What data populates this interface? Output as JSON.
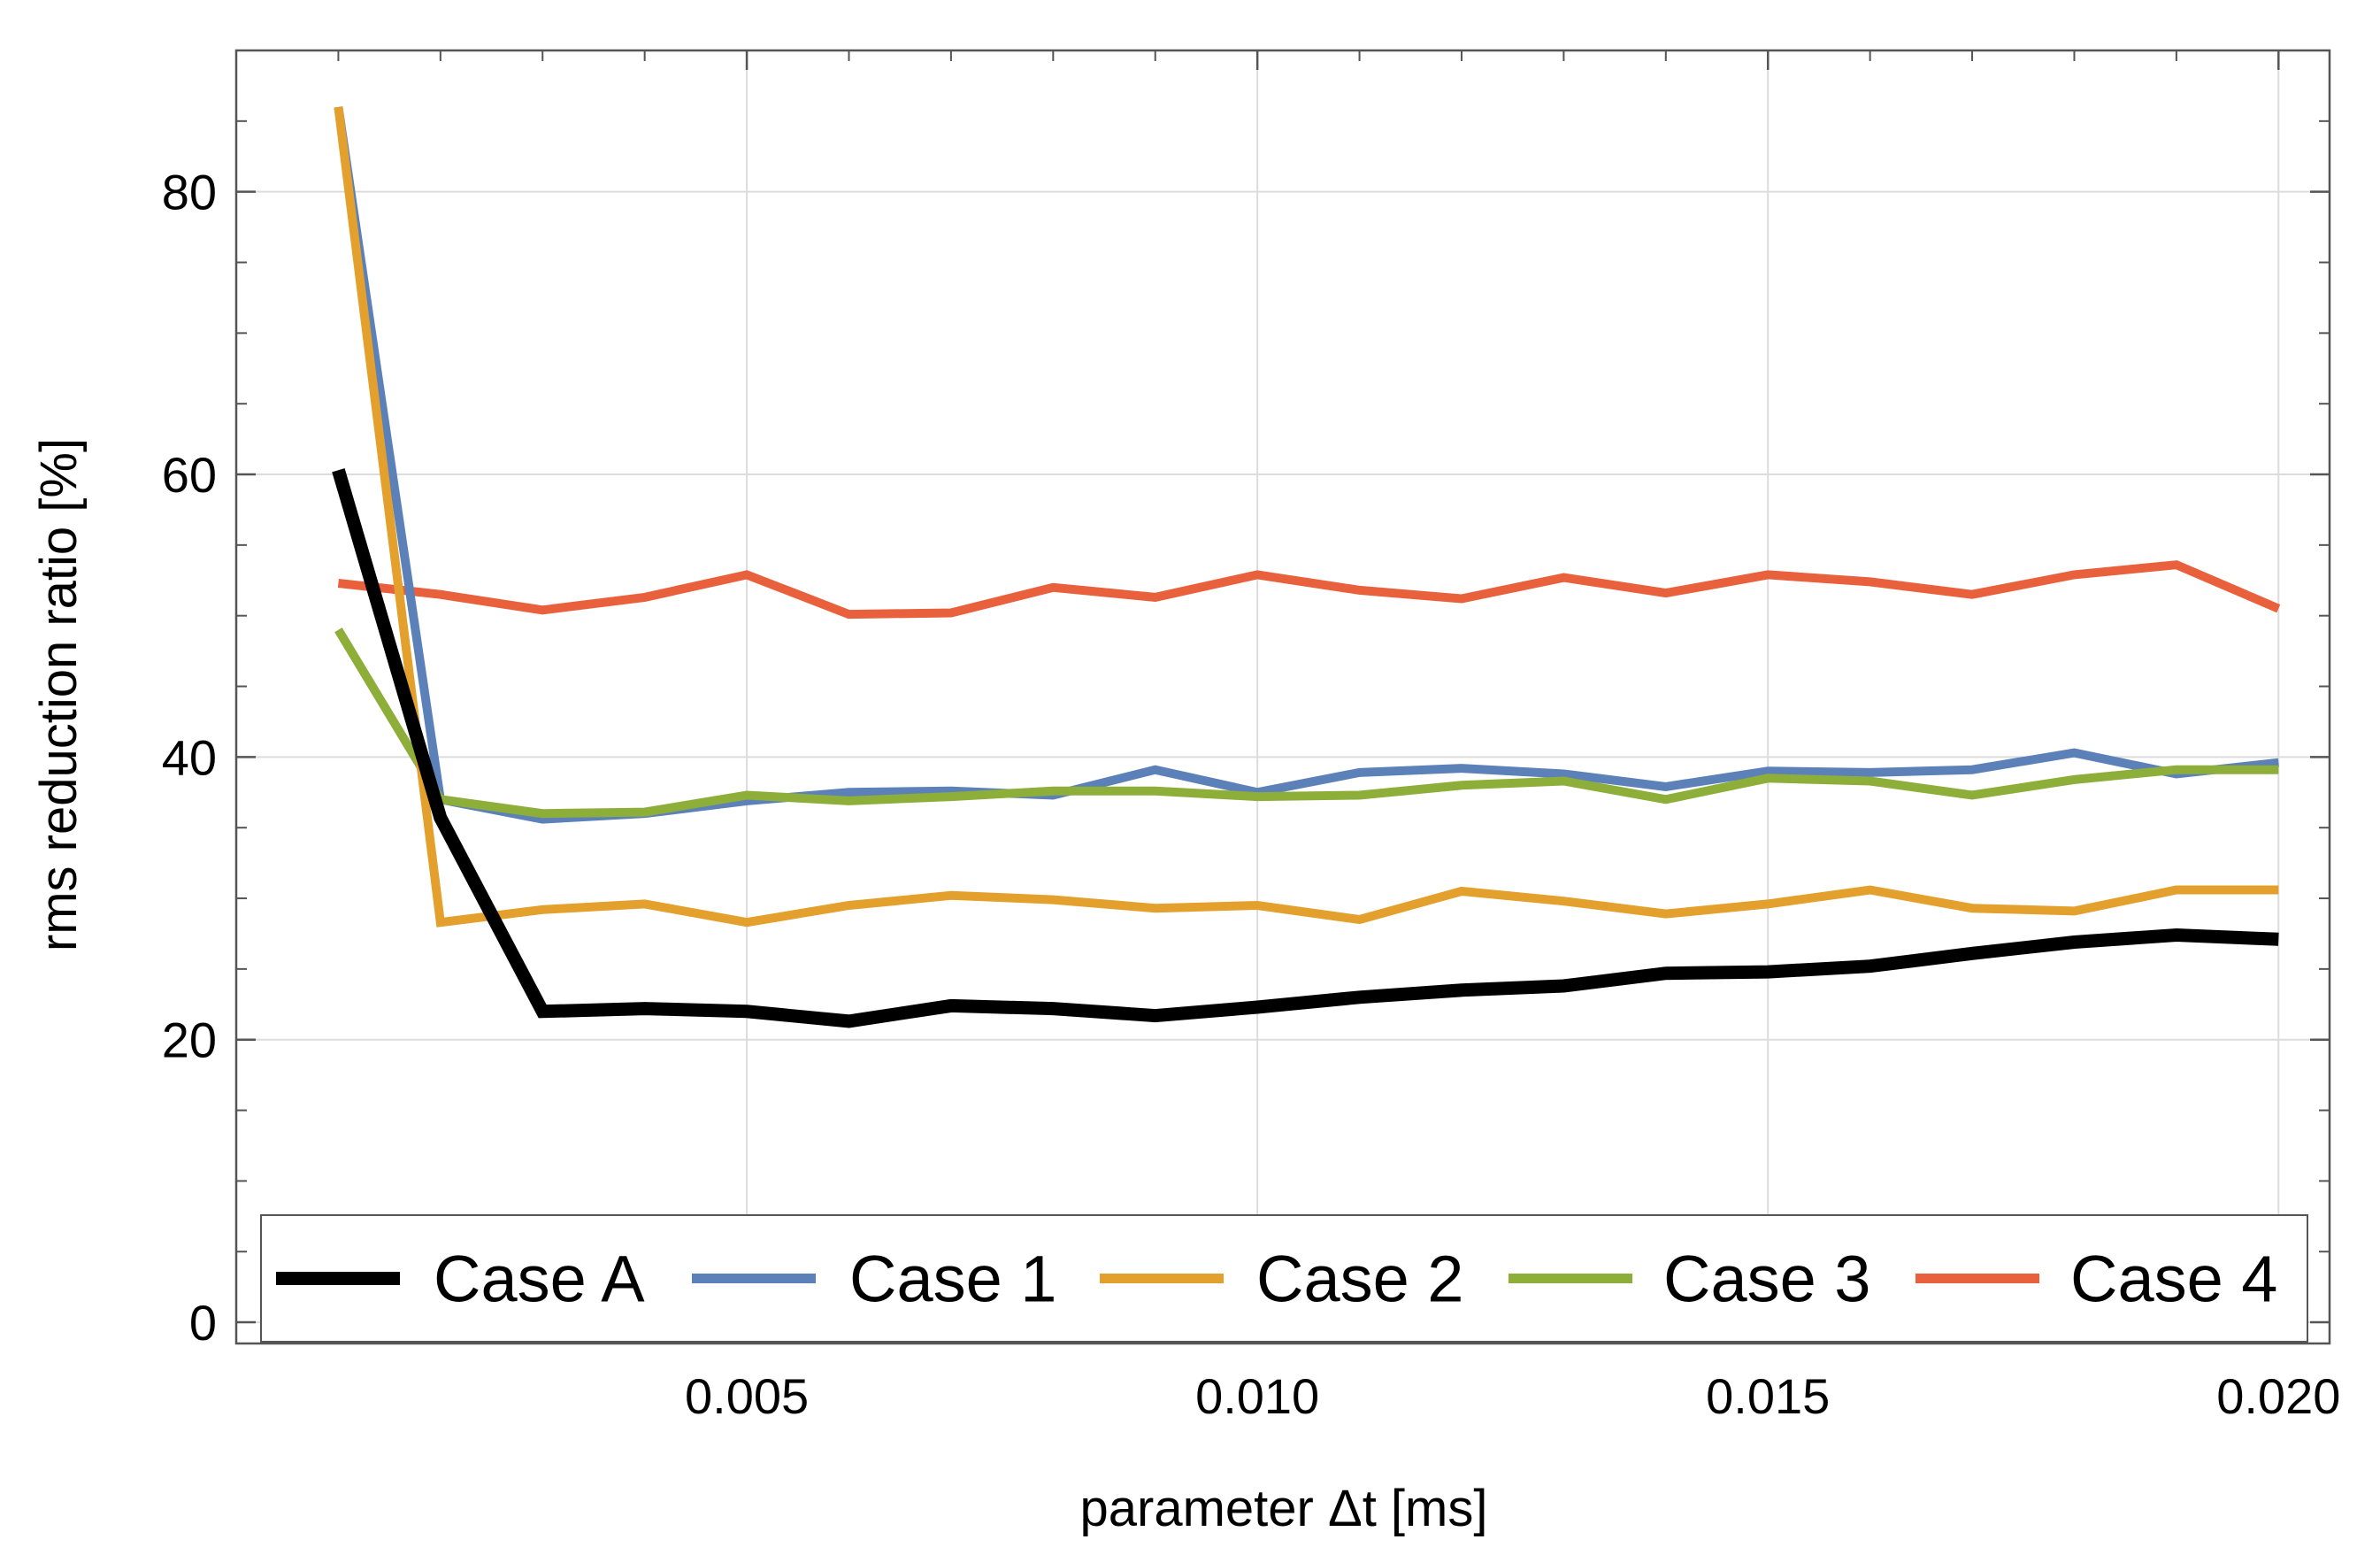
{
  "chart_data": {
    "type": "line",
    "title": "",
    "xlabel": "parameter Δt [ms]",
    "ylabel": "rms reduction ratio [%]",
    "xlim": [
      0,
      0.0205
    ],
    "ylim": [
      -1.5,
      90
    ],
    "x_major_ticks": [
      0.005,
      0.01,
      0.015,
      0.02
    ],
    "x_tick_labels": [
      "0.005",
      "0.010",
      "0.015",
      "0.020"
    ],
    "x_minor_ticks": [
      0.001,
      0.002,
      0.003,
      0.004,
      0.006,
      0.007,
      0.008,
      0.009,
      0.011,
      0.012,
      0.013,
      0.014,
      0.016,
      0.017,
      0.018,
      0.019
    ],
    "y_major_ticks": [
      0,
      20,
      40,
      60,
      80
    ],
    "y_tick_labels": [
      "0",
      "20",
      "40",
      "60",
      "80"
    ],
    "y_minor_ticks": [
      5,
      10,
      15,
      25,
      30,
      35,
      45,
      50,
      55,
      65,
      70,
      75,
      85
    ],
    "grid": true,
    "legend_position": "bottom",
    "x": [
      0.001,
      0.002,
      0.003,
      0.004,
      0.005,
      0.006,
      0.007,
      0.008,
      0.009,
      0.01,
      0.011,
      0.012,
      0.013,
      0.014,
      0.015,
      0.016,
      0.017,
      0.018,
      0.019,
      0.02
    ],
    "series": [
      {
        "name": "Case 4",
        "color": "#e8603c",
        "values": [
          52.3,
          51.5,
          50.4,
          51.3,
          52.9,
          50.1,
          50.2,
          52.0,
          51.3,
          52.9,
          51.8,
          51.2,
          52.7,
          51.6,
          52.9,
          52.4,
          51.5,
          52.9,
          53.6,
          50.5
        ]
      },
      {
        "name": "Case 1",
        "color": "#5c81b8",
        "values": [
          86.0,
          37.0,
          35.6,
          36.0,
          36.9,
          37.5,
          37.6,
          37.3,
          39.1,
          37.5,
          38.9,
          39.2,
          38.8,
          37.9,
          39.0,
          38.9,
          39.1,
          40.3,
          38.8,
          39.6
        ]
      },
      {
        "name": "Case 3",
        "color": "#8eae3a",
        "values": [
          49.0,
          37.0,
          36.0,
          36.1,
          37.3,
          36.9,
          37.2,
          37.6,
          37.6,
          37.2,
          37.3,
          38.0,
          38.3,
          37.0,
          38.5,
          38.3,
          37.3,
          38.4,
          39.1,
          39.1
        ]
      },
      {
        "name": "Case 2",
        "color": "#e3a02d",
        "values": [
          86.0,
          28.3,
          29.2,
          29.6,
          28.3,
          29.5,
          30.2,
          29.9,
          29.3,
          29.5,
          28.5,
          30.5,
          29.8,
          28.9,
          29.6,
          30.6,
          29.3,
          29.1,
          30.6,
          30.6
        ]
      },
      {
        "name": "Case A",
        "color": "#000000",
        "values": [
          60.3,
          35.7,
          22.0,
          22.2,
          22.0,
          21.3,
          22.4,
          22.2,
          21.7,
          22.3,
          23.0,
          23.5,
          23.8,
          24.7,
          24.8,
          25.2,
          26.1,
          26.9,
          27.4,
          27.1
        ]
      }
    ],
    "legend": [
      {
        "name": "Case A",
        "color": "#000000"
      },
      {
        "name": "Case 1",
        "color": "#5c81b8"
      },
      {
        "name": "Case 2",
        "color": "#e3a02d"
      },
      {
        "name": "Case 3",
        "color": "#8eae3a"
      },
      {
        "name": "Case 4",
        "color": "#e8603c"
      }
    ]
  }
}
